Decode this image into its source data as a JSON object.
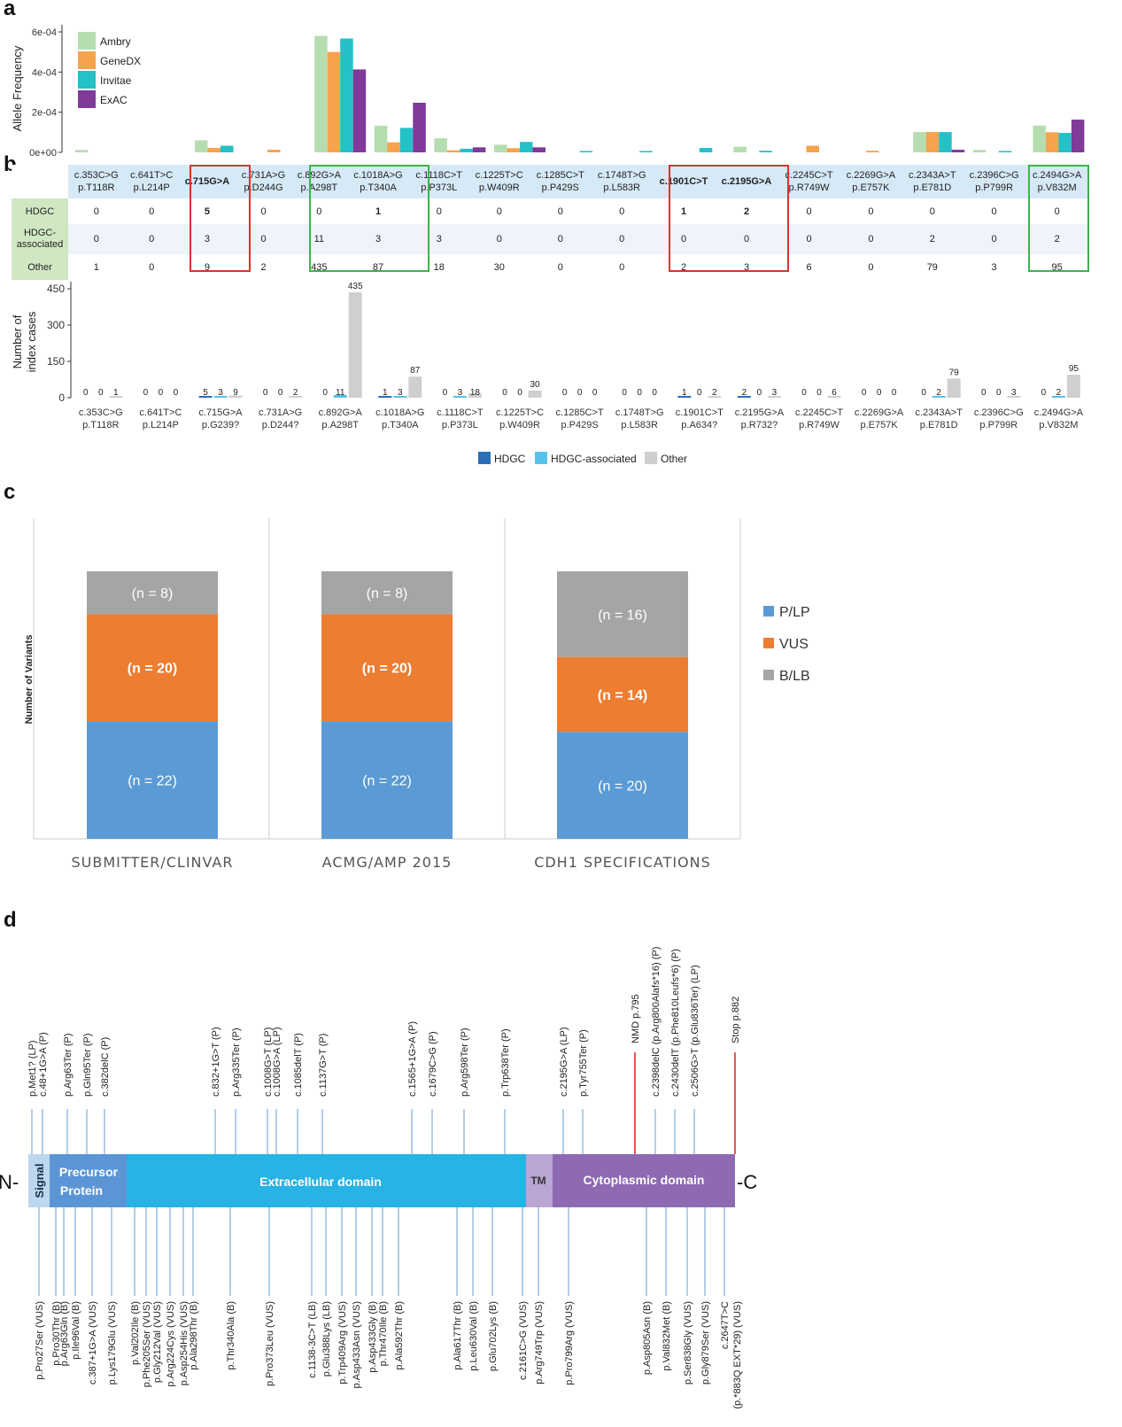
{
  "panel_labels": {
    "a": "a",
    "b": "b",
    "c": "c",
    "d": "d"
  },
  "colors": {
    "ambry": "#b6ddb0",
    "genedx": "#f5a34d",
    "invitae": "#26c0c7",
    "exac": "#7f3a9a",
    "hdgc": "#2d6fb6",
    "hdgc_assoc": "#57c2ea",
    "other": "#cfcfcf",
    "plp": "#5b9bd5",
    "vus": "#ed7d31",
    "blb": "#a5a5a5",
    "signal": "#bcd7ef",
    "precursor": "#5b95d5",
    "extracellular": "#27b3e3",
    "tm": "#b9a6d3",
    "cytoplasmic": "#8d6ab1"
  },
  "chart_data": [
    {
      "type": "bar",
      "panel": "a",
      "ylabel": "Allele Frequency",
      "yticks": [
        "6e-04",
        "4e-04",
        "2e-04",
        "0e+00"
      ],
      "ylim": [
        0,
        0.0006
      ],
      "legend_position": "top-left",
      "categories": [
        "c.353C>G",
        "c.641T>C",
        "c.715G>A",
        "c.731A>G",
        "c.892G>A",
        "c.1018A>G",
        "c.1118C>T",
        "c.1225T>C",
        "c.1285C>T",
        "c.1748T>G",
        "c.1901C>T",
        "c.2195G>A",
        "c.2245C>T",
        "c.2269G>A",
        "c.2343A>T",
        "c.2396C>G",
        "c.2494G>A"
      ],
      "series": [
        {
          "name": "Ambry",
          "color_key": "ambry",
          "values": [
            1.2e-05,
            0,
            6e-05,
            0,
            0.00058,
            0.000133,
            7e-05,
            3.8e-05,
            0,
            0,
            0,
            2.8e-05,
            0,
            0,
            0.000101,
            1.2e-05,
            0.000133
          ]
        },
        {
          "name": "GeneDX",
          "color_key": "genedx",
          "values": [
            0,
            0,
            2.2e-05,
            1.3e-05,
            0.0005,
            5e-05,
            1e-05,
            2.1e-05,
            0,
            0,
            0,
            0,
            3.3e-05,
            8e-06,
            0.000101,
            0,
            0.0001
          ]
        },
        {
          "name": "Invitae",
          "color_key": "invitae",
          "values": [
            0,
            0,
            3.3e-05,
            0,
            0.000567,
            0.000122,
            1.8e-05,
            5.2e-05,
            7e-06,
            7e-06,
            2.2e-05,
            8e-06,
            0,
            0,
            0.000101,
            7e-06,
            9.7e-05
          ]
        },
        {
          "name": "ExAC",
          "color_key": "exac",
          "values": [
            0,
            0,
            0,
            0,
            0.000413,
            0.000247,
            2.5e-05,
            2.5e-05,
            0,
            0,
            0,
            0,
            0,
            0,
            1.3e-05,
            0,
            0.000163
          ]
        }
      ]
    },
    {
      "type": "bar",
      "panel": "b",
      "ylabel": "Number of\nindex cases",
      "yticks": [
        "450",
        "300",
        "150",
        "0"
      ],
      "ylim": [
        0,
        450
      ],
      "legend_position": "bottom",
      "categories": [
        "c.353C>G|p.T118R",
        "c.641T>C|p.L214P",
        "c.715G>A|p.G239?",
        "c.731A>G|p.D244?",
        "c.892G>A|p.A298T",
        "c.1018A>G|p.T340A",
        "c.1118C>T|p.P373L",
        "c.1225T>C|p.W409R",
        "c.1285C>T|p.P429S",
        "c.1748T>G|p.L583R",
        "c.1901C>T|p.A634?",
        "c.2195G>A|p.R732?",
        "c.2245C>T|p.R749W",
        "c.2269G>A|p.E757K",
        "c.2343A>T|p.E781D",
        "c.2396C>G|p.P799R",
        "c.2494G>A|p.V832M"
      ],
      "series": [
        {
          "name": "HDGC",
          "color_key": "hdgc",
          "values": [
            0,
            0,
            5,
            0,
            0,
            1,
            0,
            0,
            0,
            0,
            1,
            2,
            0,
            0,
            0,
            0,
            0
          ]
        },
        {
          "name": "HDGC-associated",
          "color_key": "hdgc_assoc",
          "values": [
            0,
            0,
            3,
            0,
            11,
            3,
            3,
            0,
            0,
            0,
            0,
            0,
            0,
            0,
            2,
            0,
            2
          ]
        },
        {
          "name": "Other",
          "color_key": "other",
          "values": [
            1,
            0,
            9,
            2,
            435,
            87,
            18,
            30,
            0,
            0,
            2,
            3,
            6,
            0,
            79,
            3,
            95
          ]
        }
      ]
    },
    {
      "type": "bar",
      "stacked": true,
      "panel": "c",
      "ylabel": "Number of Variants",
      "legend_position": "right",
      "categories": [
        "SUBMITTER/CLINVAR",
        "ACMG/AMP 2015",
        "CDH1 SPECIFICATIONS"
      ],
      "series": [
        {
          "name": "P/LP",
          "color_key": "plp",
          "values": [
            22,
            22,
            20
          ],
          "labels": [
            "(n = 22)",
            "(n = 22)",
            "(n = 20)"
          ]
        },
        {
          "name": "VUS",
          "color_key": "vus",
          "values": [
            20,
            20,
            14
          ],
          "labels": [
            "(n = 20)",
            "(n = 20)",
            "(n = 14)"
          ]
        },
        {
          "name": "B/LB",
          "color_key": "blb",
          "values": [
            8,
            8,
            16
          ],
          "labels": [
            "(n = 8)",
            "(n = 8)",
            "(n = 16)"
          ]
        }
      ]
    }
  ],
  "table_b": {
    "header": [
      "c.353C>G\np.T118R",
      "c.641T>C\np.L214P",
      "c.715G>A",
      "c.731A>G\np.D244G",
      "c.892G>A\np.A298T",
      "c.1018A>G\np.T340A",
      "c.1118C>T\np.P373L",
      "c.1225T>C\np.W409R",
      "c.1285C>T\np.P429S",
      "c.1748T>G\np.L583R",
      "c.1901C>T",
      "c.2195G>A",
      "c.2245C>T\np.R749W",
      "c.2269G>A\np.E757K",
      "c.2343A>T\np.E781D",
      "c.2396C>G\np.P799R",
      "c.2494G>A\np.V832M"
    ],
    "rows": [
      {
        "label": "HDGC",
        "values": [
          "0",
          "0",
          "5",
          "0",
          "0",
          "1",
          "0",
          "0",
          "0",
          "0",
          "1",
          "2",
          "0",
          "0",
          "0",
          "0",
          "0"
        ]
      },
      {
        "label": "HDGC-\nassociated",
        "values": [
          "0",
          "0",
          "3",
          "0",
          "11",
          "3",
          "3",
          "0",
          "0",
          "0",
          "0",
          "0",
          "0",
          "0",
          "2",
          "0",
          "2"
        ]
      },
      {
        "label": "Other",
        "values": [
          "1",
          "0",
          "9",
          "2",
          "435",
          "87",
          "18",
          "30",
          "0",
          "0",
          "2",
          "3",
          "6",
          "0",
          "79",
          "3",
          "95"
        ]
      }
    ]
  },
  "protein_map": {
    "n_term": "N-",
    "c_term": "-C",
    "domains": {
      "signal": "Signal",
      "precursor": "Precursor\nProtein",
      "extracellular": "Extracellular domain",
      "tm": "TM",
      "cytoplasmic": "Cytoplasmic domain"
    },
    "top_labels": [
      "p.Met1? (LP)",
      "c.48+1G>A (P)",
      "p.Arg63Ter (P)",
      "p.Gln95Ter (P)",
      "c.382delC (P)",
      "c.832+1G>T (P)",
      "p.Arg335Ter (P)",
      "c.1008G>T (LP)",
      "c.1008G>A (LP)",
      "c.1085delT (P)",
      "c.1137G>T (P)",
      "c.1565+1G>A (P)",
      "c.1679C>G (P)",
      "p.Arg598Ter (P)",
      "p.Trp638Ter (P)",
      "c.2195G>A (LP)",
      "p.Tyr755Ter (P)",
      "c.2398delC (p.Arg800Alafs*16) (P)",
      "c.2430delT (p.Phe810Leufs*6) (P)",
      "c.2506G>T (p.Glu836Ter) (LP)"
    ],
    "markers": [
      "NMD p.795",
      "Stop p.882"
    ],
    "bottom_labels": [
      "p.Pro27Ser (VUS)",
      "p.Pro30Thr (B)",
      "p.Arg63Gln (B)",
      "p.Ile96Val (B)",
      "c.387+1G>A (VUS)",
      "p.Lys179Glu (VUS)",
      "p.Val202Ile (B)",
      "p.Phe205Ser (VUS)",
      "p.Gly212Val (VUS)",
      "p.Arg224Cys (VUS)",
      "p.Asp254His (VUS)",
      "p.Ala298Thr (B)",
      "p.Thr340Ala (B)",
      "p.Pro373Leu (VUS)",
      "c.1138-3C>T (LB)",
      "p.Glu388Lys (LB)",
      "p.Trp409Arg (VUS)",
      "p.Asp433Asn (VUS)",
      "p.Asp433Gly (B)",
      "p.Thr470Ile (B)",
      "p.Ala592Thr (B)",
      "p.Ala617Thr (B)",
      "p.Leu630Val (B)",
      "p.Glu702Lys (B)",
      "c.2161C>G (VUS)",
      "p.Arg749Trp (VUS)",
      "p.Pro799Arg (VUS)",
      "p.Asp805Asn (B)",
      "p.Val832Met (B)",
      "p.Ser838Gly (VUS)",
      "p.Gly879Ser (VUS)",
      "c.2647T>C",
      "(p.*883Q EXT*29) (VUS)"
    ]
  }
}
